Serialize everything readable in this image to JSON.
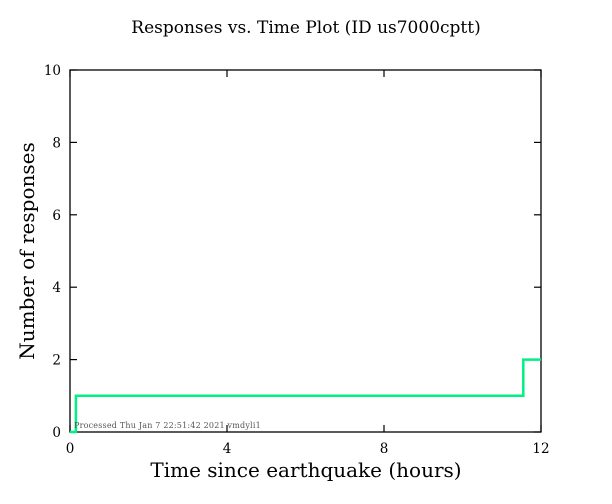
{
  "figure": {
    "title": "Responses vs. Time Plot (ID us7000cptt)",
    "xlabel": "Time since earthquake (hours)",
    "ylabel": "Number of responses",
    "annotation": "Processed Thu Jan  7 22:51:42 2021 vmdyli1"
  },
  "chart_data": {
    "type": "line",
    "subtype": "step",
    "title": "Responses vs. Time Plot (ID us7000cptt)",
    "xlabel": "Time since earthquake (hours)",
    "ylabel": "Number of responses",
    "xlim": [
      0,
      12
    ],
    "ylim": [
      0,
      10
    ],
    "x_ticks": [
      0,
      4,
      8,
      12
    ],
    "y_ticks": [
      0,
      2,
      4,
      6,
      8,
      10
    ],
    "grid": false,
    "legend": null,
    "line_color": "#00f183",
    "frame_color": "#000000",
    "series": [
      {
        "name": "responses",
        "points": [
          [
            0,
            0
          ],
          [
            0.15,
            0
          ],
          [
            0.15,
            1
          ],
          [
            11.55,
            1
          ],
          [
            11.55,
            2
          ],
          [
            12,
            2
          ]
        ]
      }
    ],
    "annotation": "Processed Thu Jan  7 22:51:42 2021 vmdyli1"
  }
}
